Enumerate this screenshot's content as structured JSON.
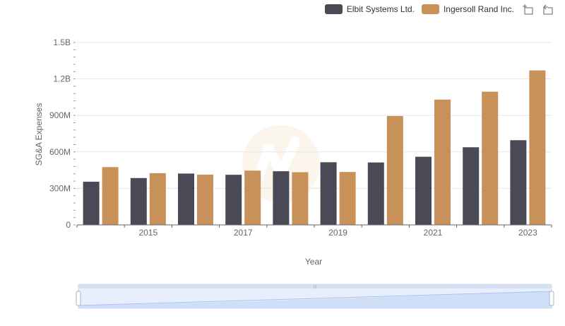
{
  "legend": {
    "items": [
      {
        "label": "Elbit Systems Ltd.",
        "color": "#4a4a56"
      },
      {
        "label": "Ingersoll Rand Inc.",
        "color": "#c8915a"
      }
    ]
  },
  "toolbox": {
    "icons": [
      "zoom-icon",
      "restore-icon"
    ]
  },
  "chart_data": {
    "type": "bar",
    "categories": [
      "2014",
      "2015",
      "2016",
      "2017",
      "2018",
      "2019",
      "2020",
      "2021",
      "2022",
      "2023"
    ],
    "x_tick_labels": [
      "2015",
      "2017",
      "2019",
      "2021",
      "2023"
    ],
    "series": [
      {
        "name": "Elbit Systems Ltd.",
        "color": "#4a4a56",
        "values": [
          355000000,
          385000000,
          422000000,
          412000000,
          441000000,
          515000000,
          513000000,
          560000000,
          638000000,
          696000000
        ]
      },
      {
        "name": "Ingersoll Rand Inc.",
        "color": "#c8915a",
        "values": [
          475000000,
          425000000,
          413000000,
          446000000,
          433000000,
          435000000,
          895000000,
          1030000000,
          1095000000,
          1270000000
        ]
      }
    ],
    "ylabel": "SG&A Expenses",
    "xlabel": "Year",
    "ylim": [
      0,
      1500000000
    ],
    "y_ticks": [
      0,
      300000000,
      600000000,
      900000000,
      1200000000,
      1500000000
    ],
    "y_tick_labels": [
      "0",
      "300M",
      "600M",
      "900M",
      "1.2B",
      "1.5B"
    ],
    "grid": true,
    "legend_position": "top-right",
    "data_zoom": {
      "start": 0,
      "end": 100
    }
  }
}
